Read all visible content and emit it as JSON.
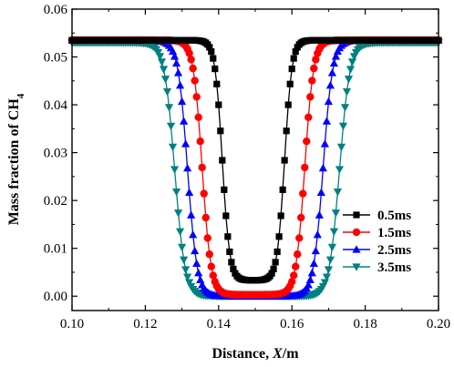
{
  "chart_data": {
    "type": "line",
    "xlabel_main": "Distance, ",
    "xlabel_italic": "X",
    "xlabel_unit": "/m",
    "ylabel_main": "Mass fraction of CH",
    "ylabel_sub": "4",
    "xlim": [
      0.1,
      0.2
    ],
    "ylim": [
      -0.003,
      0.06
    ],
    "x_ticks": [
      "0.10",
      "0.12",
      "0.14",
      "0.16",
      "0.18",
      "0.20"
    ],
    "y_ticks": [
      "0.00",
      "0.01",
      "0.02",
      "0.03",
      "0.04",
      "0.05",
      "0.06"
    ],
    "legend_position": "bottom-right",
    "series": [
      {
        "name": "0.5ms",
        "marker": "square",
        "color": "#000000",
        "center": 0.1495,
        "halfwidth": 0.0085,
        "width": 0.001,
        "plateau": 0.0535,
        "minimum": 0.0033
      },
      {
        "name": "1.5ms",
        "marker": "circle",
        "color": "#ff0000",
        "center": 0.1495,
        "halfwidth": 0.014,
        "width": 0.0012,
        "plateau": 0.0535,
        "minimum": 0.0003
      },
      {
        "name": "2.5ms",
        "marker": "triangle-up",
        "color": "#0000ff",
        "center": 0.15,
        "halfwidth": 0.0185,
        "width": 0.0013,
        "plateau": 0.0535,
        "minimum": 0.0
      },
      {
        "name": "3.5ms",
        "marker": "triangle-down",
        "color": "#008080",
        "center": 0.1505,
        "halfwidth": 0.0225,
        "width": 0.0014,
        "plateau": 0.053,
        "minimum": 0.0
      }
    ]
  }
}
